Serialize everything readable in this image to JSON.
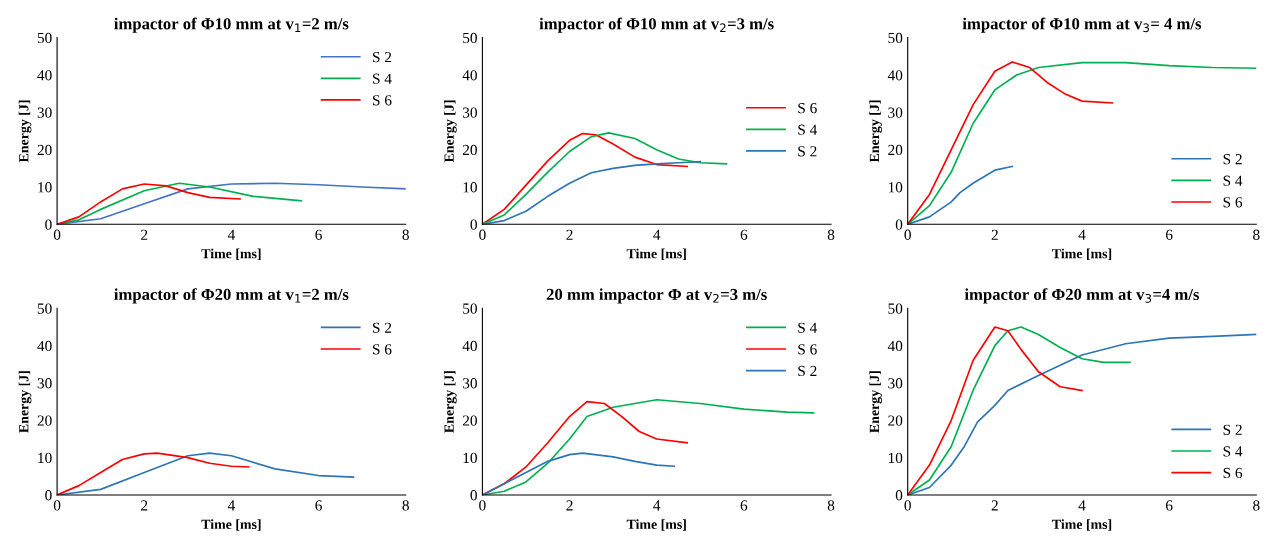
{
  "chart_data": [
    {
      "type": "line",
      "title": "impactor of Φ10 mm at v$_{1}$=2 m/s",
      "xlabel": "Time [ms]",
      "ylabel": "Energy [J]",
      "xlim": [
        0,
        8
      ],
      "xticks": [
        0,
        2,
        4,
        6,
        8
      ],
      "ylim": [
        0,
        50
      ],
      "yticks": [
        0,
        10,
        20,
        30,
        40,
        50
      ],
      "grid": false,
      "legend": "upper right",
      "series": [
        {
          "name": "S 2",
          "color": "#4472c4",
          "x": [
            0,
            1,
            2,
            3,
            4,
            5,
            6,
            7,
            8
          ],
          "values": [
            0,
            1.5,
            5.5,
            9.5,
            10.8,
            11,
            10.6,
            10,
            9.5
          ]
        },
        {
          "name": "S 4",
          "color": "#00b050",
          "x": [
            0,
            0.5,
            1,
            2,
            2.8,
            3.5,
            4.5,
            5.6
          ],
          "values": [
            0,
            1.2,
            4,
            9,
            11,
            10,
            7.5,
            6.3
          ]
        },
        {
          "name": "S 6",
          "color": "#ff0000",
          "x": [
            0,
            0.5,
            1,
            1.5,
            2,
            2.5,
            3,
            3.5,
            4.2
          ],
          "values": [
            0,
            2,
            6,
            9.5,
            10.8,
            10.3,
            8.5,
            7.2,
            6.8
          ]
        }
      ]
    },
    {
      "type": "line",
      "title": "impactor of Φ10 mm at v$_{2}$=3 m/s",
      "xlabel": "Time [ms]",
      "ylabel": "Energy [J]",
      "xlim": [
        0,
        8
      ],
      "xticks": [
        0,
        2,
        4,
        6,
        8
      ],
      "ylim": [
        0,
        50
      ],
      "yticks": [
        0,
        10,
        20,
        30,
        40,
        50
      ],
      "grid": false,
      "legend": "center right",
      "series": [
        {
          "name": "S 6",
          "color": "#ff0000",
          "x": [
            0,
            0.5,
            1,
            1.5,
            2,
            2.3,
            2.6,
            3,
            3.5,
            4,
            4.7
          ],
          "values": [
            0,
            4,
            10.5,
            17,
            22.5,
            24.3,
            24,
            21.5,
            18,
            16,
            15.5
          ]
        },
        {
          "name": "S 4",
          "color": "#00b050",
          "x": [
            0,
            0.5,
            1,
            1.5,
            2,
            2.5,
            2.9,
            3.5,
            4,
            4.5,
            5,
            5.6
          ],
          "values": [
            0,
            2.5,
            8,
            14,
            19.5,
            23.5,
            24.5,
            23,
            20,
            17.5,
            16.5,
            16.2
          ]
        },
        {
          "name": "S 2",
          "color": "#2e75b6",
          "x": [
            0,
            0.5,
            1,
            1.5,
            2,
            2.5,
            3,
            3.5,
            4,
            4.5,
            5
          ],
          "values": [
            0,
            1,
            3.5,
            7.5,
            11,
            13.8,
            15,
            15.8,
            16.2,
            16.5,
            16.8
          ]
        }
      ]
    },
    {
      "type": "line",
      "title": "impactor of Φ10 mm at v$_{3}$= 4 m/s",
      "xlabel": "Time [ms]",
      "ylabel": "Energy [J]",
      "xlim": [
        0,
        8
      ],
      "xticks": [
        0,
        2,
        4,
        6,
        8
      ],
      "ylim": [
        0,
        50
      ],
      "yticks": [
        0,
        10,
        20,
        30,
        40,
        50
      ],
      "grid": false,
      "legend": "lower right",
      "series": [
        {
          "name": "S 2",
          "color": "#2e75b6",
          "x": [
            0,
            0.5,
            1,
            1.2,
            1.5,
            2,
            2.4
          ],
          "values": [
            0,
            2,
            6,
            8.5,
            11,
            14.5,
            15.5
          ]
        },
        {
          "name": "S 4",
          "color": "#00b050",
          "x": [
            0,
            0.5,
            1,
            1.5,
            2,
            2.5,
            3,
            4,
            5,
            6,
            7,
            8
          ],
          "values": [
            0,
            5,
            14,
            27,
            36,
            40,
            42,
            43.3,
            43.3,
            42.5,
            42,
            41.8
          ]
        },
        {
          "name": "S 6",
          "color": "#ff0000",
          "x": [
            0,
            0.5,
            1,
            1.5,
            2,
            2.4,
            2.8,
            3.2,
            3.6,
            4,
            4.7
          ],
          "values": [
            0,
            8,
            20,
            32,
            41,
            43.5,
            42,
            38,
            35,
            33,
            32.5
          ]
        }
      ]
    },
    {
      "type": "line",
      "title": "impactor of Φ20 mm at v$_{1}$=2 m/s",
      "xlabel": "Time [ms]",
      "ylabel": "Energy [J]",
      "xlim": [
        0,
        8
      ],
      "xticks": [
        0,
        2,
        4,
        6,
        8
      ],
      "ylim": [
        0,
        50
      ],
      "yticks": [
        0,
        10,
        20,
        30,
        40,
        50
      ],
      "grid": false,
      "legend": "upper right",
      "series": [
        {
          "name": "S 2",
          "color": "#2e75b6",
          "x": [
            0,
            1,
            2,
            3,
            3.5,
            4,
            5,
            6,
            6.8
          ],
          "values": [
            0,
            1.5,
            6,
            10.5,
            11.2,
            10.5,
            7,
            5.2,
            4.8
          ]
        },
        {
          "name": "S 6",
          "color": "#ff0000",
          "x": [
            0,
            0.5,
            1,
            1.5,
            2,
            2.3,
            3,
            3.5,
            4,
            4.4
          ],
          "values": [
            0,
            2.5,
            6,
            9.5,
            11,
            11.2,
            10,
            8.5,
            7.7,
            7.5
          ]
        }
      ]
    },
    {
      "type": "line",
      "title": "20 mm impactor Φ at v$_{2}$=3 m/s",
      "xlabel": "Time [ms]",
      "ylabel": "Energy [J]",
      "xlim": [
        0,
        8
      ],
      "xticks": [
        0,
        2,
        4,
        6,
        8
      ],
      "ylim": [
        0,
        50
      ],
      "yticks": [
        0,
        10,
        20,
        30,
        40,
        50
      ],
      "grid": false,
      "legend": "upper right",
      "series": [
        {
          "name": "S 4",
          "color": "#00b050",
          "x": [
            0,
            0.5,
            1,
            1.5,
            2,
            2.4,
            3,
            4,
            5,
            6,
            7,
            7.6
          ],
          "values": [
            0,
            1,
            3.5,
            8.5,
            15,
            21,
            23.5,
            25.5,
            24.5,
            23,
            22.2,
            22
          ]
        },
        {
          "name": "S 6",
          "color": "#ff0000",
          "x": [
            0,
            0.5,
            1,
            1.5,
            2,
            2.4,
            2.8,
            3.2,
            3.6,
            4,
            4.7
          ],
          "values": [
            0,
            3,
            7.5,
            14,
            21,
            25,
            24.5,
            21,
            17,
            15,
            14
          ]
        },
        {
          "name": "S 2",
          "color": "#2e75b6",
          "x": [
            0,
            0.5,
            1,
            1.5,
            2,
            2.3,
            3,
            3.5,
            4,
            4.4
          ],
          "values": [
            0,
            3,
            6,
            9,
            10.8,
            11.2,
            10.2,
            9,
            8,
            7.7
          ]
        }
      ]
    },
    {
      "type": "line",
      "title": "impactor of Φ20 mm at v$_{3}$=4 m/s",
      "xlabel": "Time [ms]",
      "ylabel": "Energy [J]",
      "xlim": [
        0,
        8
      ],
      "xticks": [
        0,
        2,
        4,
        6,
        8
      ],
      "ylim": [
        0,
        50
      ],
      "yticks": [
        0,
        10,
        20,
        30,
        40,
        50
      ],
      "grid": false,
      "legend": "lower right",
      "series": [
        {
          "name": "S 2",
          "color": "#2e75b6",
          "x": [
            0,
            0.5,
            1,
            1.3,
            1.6,
            2,
            2.3,
            3,
            4,
            5,
            6,
            7,
            8
          ],
          "values": [
            0,
            2,
            8,
            13,
            19.5,
            24,
            28,
            32,
            37.5,
            40.5,
            42,
            42.5,
            43
          ]
        },
        {
          "name": "S 4",
          "color": "#00b050",
          "x": [
            0,
            0.5,
            1,
            1.5,
            2,
            2.3,
            2.6,
            3,
            3.5,
            4,
            4.5,
            5.1
          ],
          "values": [
            0,
            4,
            13,
            28,
            40,
            44,
            45,
            43,
            39.5,
            36.5,
            35.5,
            35.5
          ]
        },
        {
          "name": "S 6",
          "color": "#ff0000",
          "x": [
            0,
            0.5,
            1,
            1.5,
            2,
            2.3,
            2.6,
            3,
            3.5,
            4
          ],
          "values": [
            0,
            8,
            20,
            36,
            45,
            44,
            39,
            33,
            29,
            28
          ]
        }
      ]
    }
  ]
}
